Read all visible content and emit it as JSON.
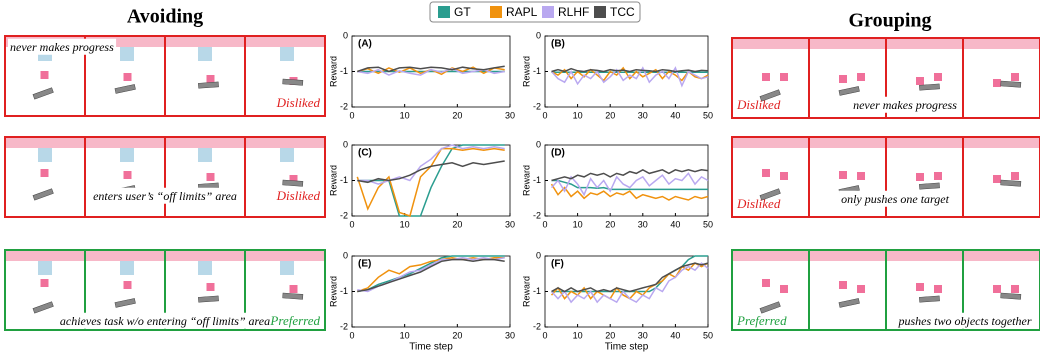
{
  "left_title": "Avoiding",
  "right_title": "Grouping",
  "legend": [
    {
      "name": "GT",
      "color": "#2a9d8f"
    },
    {
      "name": "RAPL",
      "color": "#f0920e"
    },
    {
      "name": "RLHF",
      "color": "#b9a8f0"
    },
    {
      "name": "TCC",
      "color": "#4d4d4d"
    }
  ],
  "left_rows": [
    {
      "caption": "never makes progress",
      "verdict": "Disliked",
      "color": "#e02020"
    },
    {
      "caption": "enters user’s “off limits” area",
      "verdict": "Disliked",
      "color": "#e02020"
    },
    {
      "caption": "achieves task w/o entering “off limits” area",
      "verdict": "Preferred",
      "color": "#20a040"
    }
  ],
  "right_rows": [
    {
      "caption": "never makes progress",
      "verdict": "Disliked",
      "color": "#e02020"
    },
    {
      "caption": "only pushes one target",
      "verdict": "Disliked",
      "color": "#e02020"
    },
    {
      "caption": "pushes two objects together",
      "verdict": "Preferred",
      "color": "#20a040"
    }
  ],
  "chart_data": [
    {
      "type": "line",
      "label": "(A)",
      "y_label": "Reward",
      "x": [
        1,
        3,
        5,
        7,
        9,
        11,
        13,
        15,
        17,
        19,
        21,
        23,
        25,
        27,
        29
      ],
      "xlim": [
        0,
        30
      ],
      "xticks": [
        0,
        10,
        20,
        30
      ],
      "ylim": [
        -2,
        0
      ],
      "yticks": [
        -2,
        -1,
        0
      ],
      "series": [
        {
          "values": [
            -1,
            -1,
            -1,
            -1,
            -1,
            -1,
            -1,
            -1,
            -1,
            -1,
            -1,
            -1,
            -1,
            -1,
            -1
          ]
        },
        {
          "values": [
            -1,
            -0.92,
            -1.05,
            -0.9,
            -1.02,
            -0.9,
            -1.05,
            -0.95,
            -1.08,
            -0.9,
            -1.0,
            -0.88,
            -1.05,
            -0.9,
            -0.95
          ]
        },
        {
          "values": [
            -1,
            -1.05,
            -0.95,
            -1.1,
            -0.98,
            -1.05,
            -1.1,
            -0.95,
            -1.02,
            -0.92,
            -1.05,
            -1.0,
            -0.95,
            -1.05,
            -1.0
          ]
        },
        {
          "values": [
            -1,
            -0.9,
            -0.88,
            -1.0,
            -0.9,
            -0.88,
            -0.92,
            -0.88,
            -0.9,
            -0.95,
            -0.88,
            -0.92,
            -0.95,
            -0.9,
            -0.85
          ]
        }
      ]
    },
    {
      "type": "line",
      "label": "(B)",
      "y_label": "Reward",
      "x": [
        2,
        4,
        6,
        8,
        10,
        12,
        14,
        16,
        18,
        20,
        22,
        24,
        26,
        28,
        30,
        32,
        34,
        36,
        38,
        40,
        42,
        44,
        46,
        48,
        50
      ],
      "xlim": [
        0,
        50
      ],
      "xticks": [
        0,
        10,
        20,
        30,
        40,
        50
      ],
      "ylim": [
        -2,
        0
      ],
      "yticks": [
        -2,
        -1,
        0
      ],
      "series": [
        {
          "values": [
            -1.02,
            -1.02,
            -1.02,
            -1.02,
            -1.02,
            -1.02,
            -1.02,
            -1.02,
            -1.02,
            -1.02,
            -1.02,
            -1.02,
            -1.02,
            -1.02,
            -1.02,
            -1.02,
            -1.02,
            -1.02,
            -1.02,
            -1.02,
            -1.02,
            -1.02,
            -1.02,
            -1.02,
            -1.02
          ]
        },
        {
          "values": [
            -1,
            -1.1,
            -0.95,
            -1.2,
            -1.0,
            -1.15,
            -0.95,
            -1.1,
            -1.25,
            -1.0,
            -1.1,
            -0.9,
            -1.2,
            -1.0,
            -1.15,
            -1.05,
            -0.95,
            -1.2,
            -1.0,
            -1.1,
            -1.25,
            -1.0,
            -1.15,
            -1.2,
            -1.1
          ]
        },
        {
          "values": [
            -1,
            -1.2,
            -1.3,
            -1.0,
            -1.35,
            -1.1,
            -1.2,
            -1.0,
            -1.3,
            -1.15,
            -0.95,
            -1.25,
            -1.1,
            -1.2,
            -0.9,
            -1.3,
            -1.1,
            -1.0,
            -1.2,
            -0.9,
            -1.4,
            -1.0,
            -1.1,
            -1.2,
            -1.15
          ]
        },
        {
          "values": [
            -1,
            -0.95,
            -1.0,
            -0.92,
            -0.98,
            -1.0,
            -0.95,
            -0.97,
            -1.0,
            -0.95,
            -0.98,
            -0.96,
            -1.0,
            -0.95,
            -0.97,
            -0.98,
            -1.0,
            -0.95,
            -0.97,
            -1.0,
            -0.98,
            -0.96,
            -1.0,
            -0.97,
            -0.98
          ]
        }
      ]
    },
    {
      "type": "line",
      "label": "(C)",
      "y_label": "Reward",
      "x": [
        1,
        3,
        5,
        7,
        9,
        11,
        13,
        15,
        17,
        19,
        21,
        23,
        25,
        27,
        29
      ],
      "xlim": [
        0,
        30
      ],
      "xticks": [
        0,
        10,
        20,
        30
      ],
      "ylim": [
        -2,
        0
      ],
      "yticks": [
        -2,
        -1,
        0
      ],
      "series": [
        {
          "values": [
            -1,
            -1,
            -1,
            -1,
            -2,
            -2,
            -2,
            -1.2,
            -0.6,
            -0.1,
            0,
            0,
            0,
            0,
            0
          ]
        },
        {
          "values": [
            -0.9,
            -1.8,
            -1.2,
            -0.9,
            -1.9,
            -2,
            -0.9,
            -0.6,
            -0.1,
            -0.1,
            -0.15,
            -0.1,
            -0.15,
            -0.1,
            -0.15
          ]
        },
        {
          "values": [
            -1,
            -1,
            -1.1,
            -1,
            -0.9,
            -1,
            -0.6,
            -0.4,
            -0.1,
            0,
            -0.1,
            -0.05,
            -0.1,
            -0.05,
            -0.1
          ]
        },
        {
          "values": [
            -1,
            -1.05,
            -0.95,
            -1,
            -0.95,
            -0.85,
            -0.7,
            -0.6,
            -0.55,
            -0.5,
            -0.6,
            -0.5,
            -0.55,
            -0.5,
            -0.45
          ]
        }
      ]
    },
    {
      "type": "line",
      "label": "(D)",
      "y_label": "Reward",
      "x": [
        2,
        4,
        6,
        8,
        10,
        12,
        14,
        16,
        18,
        20,
        22,
        24,
        26,
        28,
        30,
        32,
        34,
        36,
        38,
        40,
        42,
        44,
        46,
        48,
        50
      ],
      "xlim": [
        0,
        50
      ],
      "xticks": [
        0,
        10,
        20,
        30,
        40,
        50
      ],
      "ylim": [
        -2,
        0
      ],
      "yticks": [
        -2,
        -1,
        0
      ],
      "series": [
        {
          "values": [
            -1,
            -1.0,
            -1.05,
            -1.1,
            -1.2,
            -1.2,
            -1.2,
            -1.22,
            -1.2,
            -1.25,
            -1.25,
            -1.25,
            -1.25,
            -1.25,
            -1.25,
            -1.25,
            -1.25,
            -1.25,
            -1.25,
            -1.25,
            -1.25,
            -1.25,
            -1.25,
            -1.25,
            -1.25
          ]
        },
        {
          "values": [
            -1.1,
            -1.4,
            -1.2,
            -1.45,
            -1.3,
            -1.5,
            -1.35,
            -1.4,
            -1.3,
            -1.45,
            -1.35,
            -1.4,
            -1.3,
            -1.5,
            -1.4,
            -1.45,
            -1.5,
            -1.45,
            -1.55,
            -1.45,
            -1.5,
            -1.55,
            -1.45,
            -1.5,
            -1.45
          ]
        },
        {
          "values": [
            -1.2,
            -1.0,
            -1.3,
            -0.9,
            -1.1,
            -1.4,
            -0.95,
            -1.2,
            -1.0,
            -1.3,
            -0.9,
            -1.1,
            -1.2,
            -1.0,
            -0.9,
            -1.15,
            -1.0,
            -0.85,
            -1.1,
            -0.95,
            -1.0,
            -0.8,
            -1.1,
            -0.9,
            -1.0
          ]
        },
        {
          "values": [
            -1,
            -0.95,
            -0.9,
            -0.95,
            -0.85,
            -0.9,
            -0.8,
            -0.85,
            -0.8,
            -0.9,
            -0.8,
            -0.85,
            -0.75,
            -0.8,
            -0.7,
            -0.8,
            -0.75,
            -0.7,
            -0.8,
            -0.7,
            -0.75,
            -0.7,
            -0.75,
            -0.7,
            -0.72
          ]
        }
      ]
    },
    {
      "type": "line",
      "label": "(E)",
      "y_label": "Reward",
      "x_label": "Time step",
      "x": [
        1,
        3,
        5,
        7,
        9,
        11,
        13,
        15,
        17,
        19,
        21,
        23,
        25,
        27,
        29
      ],
      "xlim": [
        0,
        30
      ],
      "xticks": [
        0,
        10,
        20,
        30
      ],
      "ylim": [
        -2,
        0
      ],
      "yticks": [
        -2,
        -1,
        0
      ],
      "series": [
        {
          "values": [
            -1,
            -0.95,
            -0.8,
            -0.7,
            -0.6,
            -0.5,
            -0.35,
            -0.2,
            -0.05,
            0,
            0,
            0,
            0,
            0,
            0
          ]
        },
        {
          "values": [
            -1,
            -0.9,
            -0.6,
            -0.4,
            -0.5,
            -0.3,
            -0.25,
            -0.15,
            -0.1,
            -0.05,
            -0.1,
            -0.05,
            -0.1,
            -0.05,
            -0.05
          ]
        },
        {
          "values": [
            -0.95,
            -1.0,
            -0.85,
            -0.75,
            -0.6,
            -0.45,
            -0.4,
            -0.25,
            -0.1,
            -0.1,
            -0.05,
            -0.1,
            -0.05,
            -0.1,
            -0.05
          ]
        },
        {
          "values": [
            -1,
            -0.95,
            -0.85,
            -0.75,
            -0.65,
            -0.55,
            -0.45,
            -0.3,
            -0.15,
            -0.1,
            -0.1,
            -0.15,
            -0.1,
            -0.1,
            -0.15
          ]
        }
      ]
    },
    {
      "type": "line",
      "label": "(F)",
      "y_label": "Reward",
      "x_label": "Time step",
      "x": [
        2,
        4,
        6,
        8,
        10,
        12,
        14,
        16,
        18,
        20,
        22,
        24,
        26,
        28,
        30,
        32,
        34,
        36,
        38,
        40,
        42,
        44,
        46,
        48,
        50
      ],
      "xlim": [
        0,
        50
      ],
      "xticks": [
        0,
        10,
        20,
        30,
        40,
        50
      ],
      "ylim": [
        -2,
        0
      ],
      "yticks": [
        -2,
        -1,
        0
      ],
      "series": [
        {
          "values": [
            -1,
            -1,
            -1,
            -1,
            -1,
            -1,
            -1,
            -1,
            -1,
            -1,
            -1,
            -1,
            -1,
            -1,
            -1,
            -1,
            -0.9,
            -0.7,
            -0.5,
            -0.4,
            -0.3,
            -0.1,
            0,
            0,
            0
          ]
        },
        {
          "values": [
            -1.1,
            -0.9,
            -1.2,
            -1.0,
            -1.1,
            -0.9,
            -1.2,
            -1.0,
            -1.1,
            -1.2,
            -0.9,
            -1.1,
            -1.2,
            -1.0,
            -1.1,
            -0.9,
            -0.8,
            -0.7,
            -0.5,
            -0.6,
            -0.3,
            -0.4,
            -0.2,
            -0.3,
            -0.2
          ]
        },
        {
          "values": [
            -1.0,
            -1.2,
            -1.0,
            -1.3,
            -1.1,
            -1.2,
            -1.0,
            -1.3,
            -1.1,
            -1.2,
            -1.3,
            -1.0,
            -1.2,
            -1.3,
            -1.1,
            -1.2,
            -0.9,
            -1.0,
            -0.7,
            -0.6,
            -0.4,
            -0.3,
            -0.4,
            -0.2,
            -0.35
          ]
        },
        {
          "values": [
            -1,
            -0.9,
            -1.0,
            -0.9,
            -1.0,
            -0.95,
            -0.9,
            -1.0,
            -0.95,
            -1.0,
            -0.9,
            -0.95,
            -1.0,
            -0.95,
            -0.9,
            -0.85,
            -0.8,
            -0.6,
            -0.5,
            -0.4,
            -0.3,
            -0.25,
            -0.2,
            -0.25,
            -0.2
          ]
        }
      ]
    }
  ]
}
